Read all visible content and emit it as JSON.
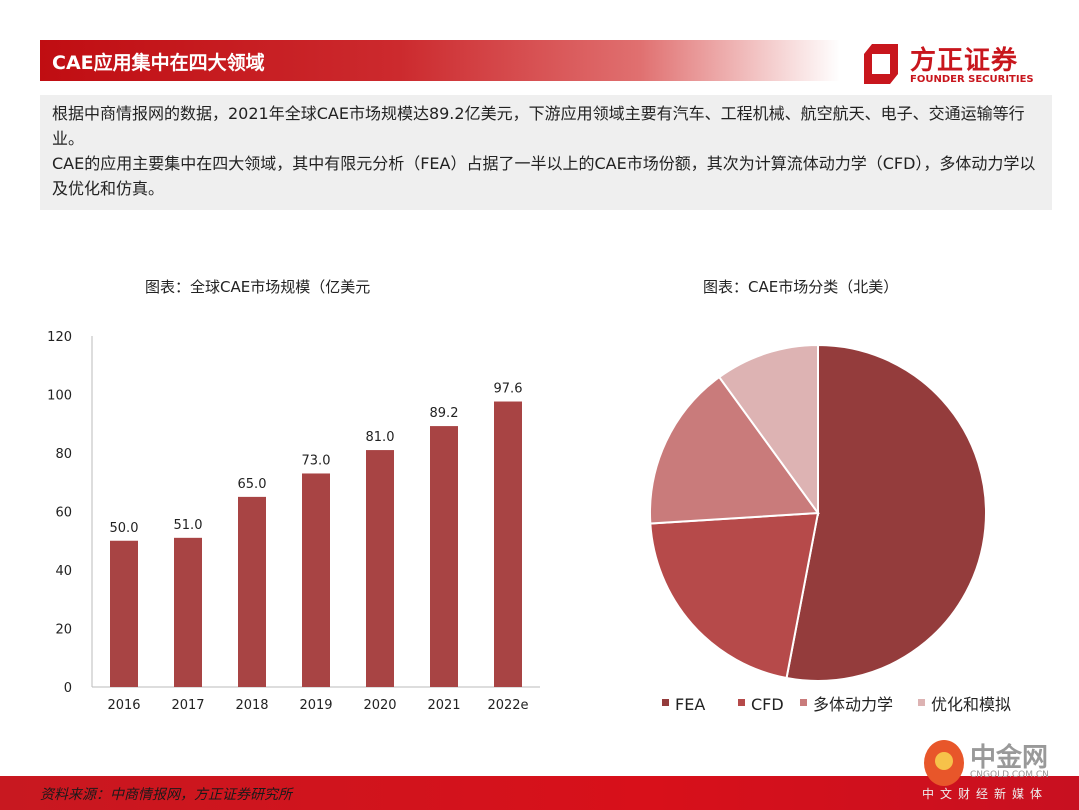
{
  "header": {
    "title": "CAE应用集中在四大领域",
    "logo_cn": "方正证券",
    "logo_en": "FOUNDER SECURITIES"
  },
  "intro": {
    "p1": "根据中商情报网的数据，2021年全球CAE市场规模达89.2亿美元，下游应用领域主要有汽车、工程机械、航空航天、电子、交通运输等行业。",
    "p2": "CAE的应用主要集中在四大领域，其中有限元分析（FEA）占据了一半以上的CAE市场份额，其次为计算流体动力学（CFD），多体动力学以及优化和仿真。"
  },
  "chart_data": [
    {
      "type": "bar",
      "title": "图表：全球CAE市场规模（亿美元",
      "categories": [
        "2016",
        "2017",
        "2018",
        "2019",
        "2020",
        "2021",
        "2022e"
      ],
      "values": [
        50.0,
        51.0,
        65.0,
        73.0,
        81.0,
        89.2,
        97.6
      ],
      "labels": [
        "50.0",
        "51.0",
        "65.0",
        "73.0",
        "81.0",
        "89.2",
        "97.6"
      ],
      "ylim": [
        0,
        120
      ],
      "yticks": [
        0,
        20,
        40,
        60,
        80,
        100,
        120
      ],
      "color": "#a84444"
    },
    {
      "type": "pie",
      "title": "图表：CAE市场分类（北美）",
      "categories": [
        "FEA",
        "CFD",
        "多体动力学",
        "优化和模拟"
      ],
      "values": [
        53,
        21,
        16,
        10
      ],
      "colors": [
        "#943c3c",
        "#b64a4a",
        "#c97b7b",
        "#ddb3b3"
      ],
      "legend": "bottom"
    }
  ],
  "footer": {
    "source": "资料来源：中商情报网，方正证券研究所"
  },
  "watermark": {
    "name": "中金网",
    "domain": "CNGOLD.COM.CN",
    "tagline": "中文财经新媒体"
  }
}
